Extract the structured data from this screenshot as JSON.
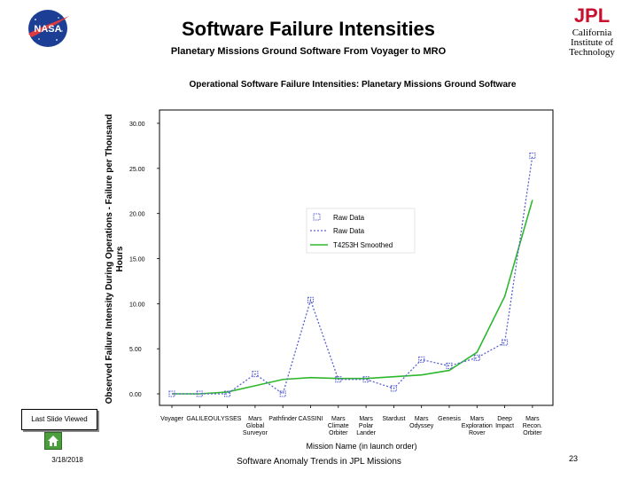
{
  "header": {
    "title": "Software Failure Intensities",
    "subtitle": "Planetary Missions Ground Software From Voyager to MRO",
    "nasa_logo_text": "NASA",
    "jpl_logo_text": "JPL",
    "institution_lines": [
      "California",
      "Institute of",
      "Technology"
    ]
  },
  "colors": {
    "raw_series": "#5b62d1",
    "smoothed_series": "#2db82d",
    "nasa_blue": "#1c3f95",
    "nasa_red": "#e03a3e",
    "jpl_red": "#c8102e",
    "home_green": "#4b9e3c"
  },
  "chart_data": {
    "type": "line",
    "title": "Operational Software Failure Intensities: Planetary Missions Ground Software",
    "xlabel": "Mission Name (in launch order)",
    "ylabel_lines": [
      "Observed Failure Intensity During Operations - Failure per Thousand",
      "Hours"
    ],
    "ylim": [
      0,
      30
    ],
    "yticks": [
      "0.00",
      "5.00",
      "10.00",
      "15.00",
      "20.00",
      "25.00",
      "30.00"
    ],
    "grid": false,
    "legend_position": "center-left",
    "legend": [
      "Raw Data",
      "Raw Data",
      "T4253H Smoothed"
    ],
    "categories": [
      [
        "Voyager"
      ],
      [
        "GALILEO"
      ],
      [
        "ULYSSES"
      ],
      [
        "Mars",
        "Global",
        "Surveyor"
      ],
      [
        "Pathfinder"
      ],
      [
        "CASSINI"
      ],
      [
        "Mars",
        "Climate",
        "Orbiter"
      ],
      [
        "Mars",
        "Polar",
        "Lander"
      ],
      [
        "Stardust"
      ],
      [
        "Mars",
        "Odyssey"
      ],
      [
        "Genesis"
      ],
      [
        "Mars",
        "Exploration",
        "Rover"
      ],
      [
        "Deep",
        "Impact"
      ],
      [
        "Mars",
        "Recon.",
        "Orbiter"
      ]
    ],
    "series": [
      {
        "name": "Raw Data",
        "style": "dotted-square-markers",
        "values": [
          0.0,
          0.0,
          0.0,
          2.2,
          0.0,
          10.4,
          1.6,
          1.6,
          0.6,
          3.8,
          3.1,
          4.0,
          5.7,
          26.4
        ]
      },
      {
        "name": "T4253H Smoothed",
        "style": "solid",
        "values": [
          0.0,
          0.0,
          0.2,
          0.9,
          1.6,
          1.8,
          1.7,
          1.7,
          1.9,
          2.1,
          2.6,
          4.6,
          10.8,
          21.5
        ]
      }
    ]
  },
  "navigation": {
    "last_slide_label": "Last Slide Viewed",
    "home_label": "Home"
  },
  "footer": {
    "date": "3/18/2018",
    "center": "Software Anomaly Trends in JPL Missions",
    "page_number": "23"
  }
}
